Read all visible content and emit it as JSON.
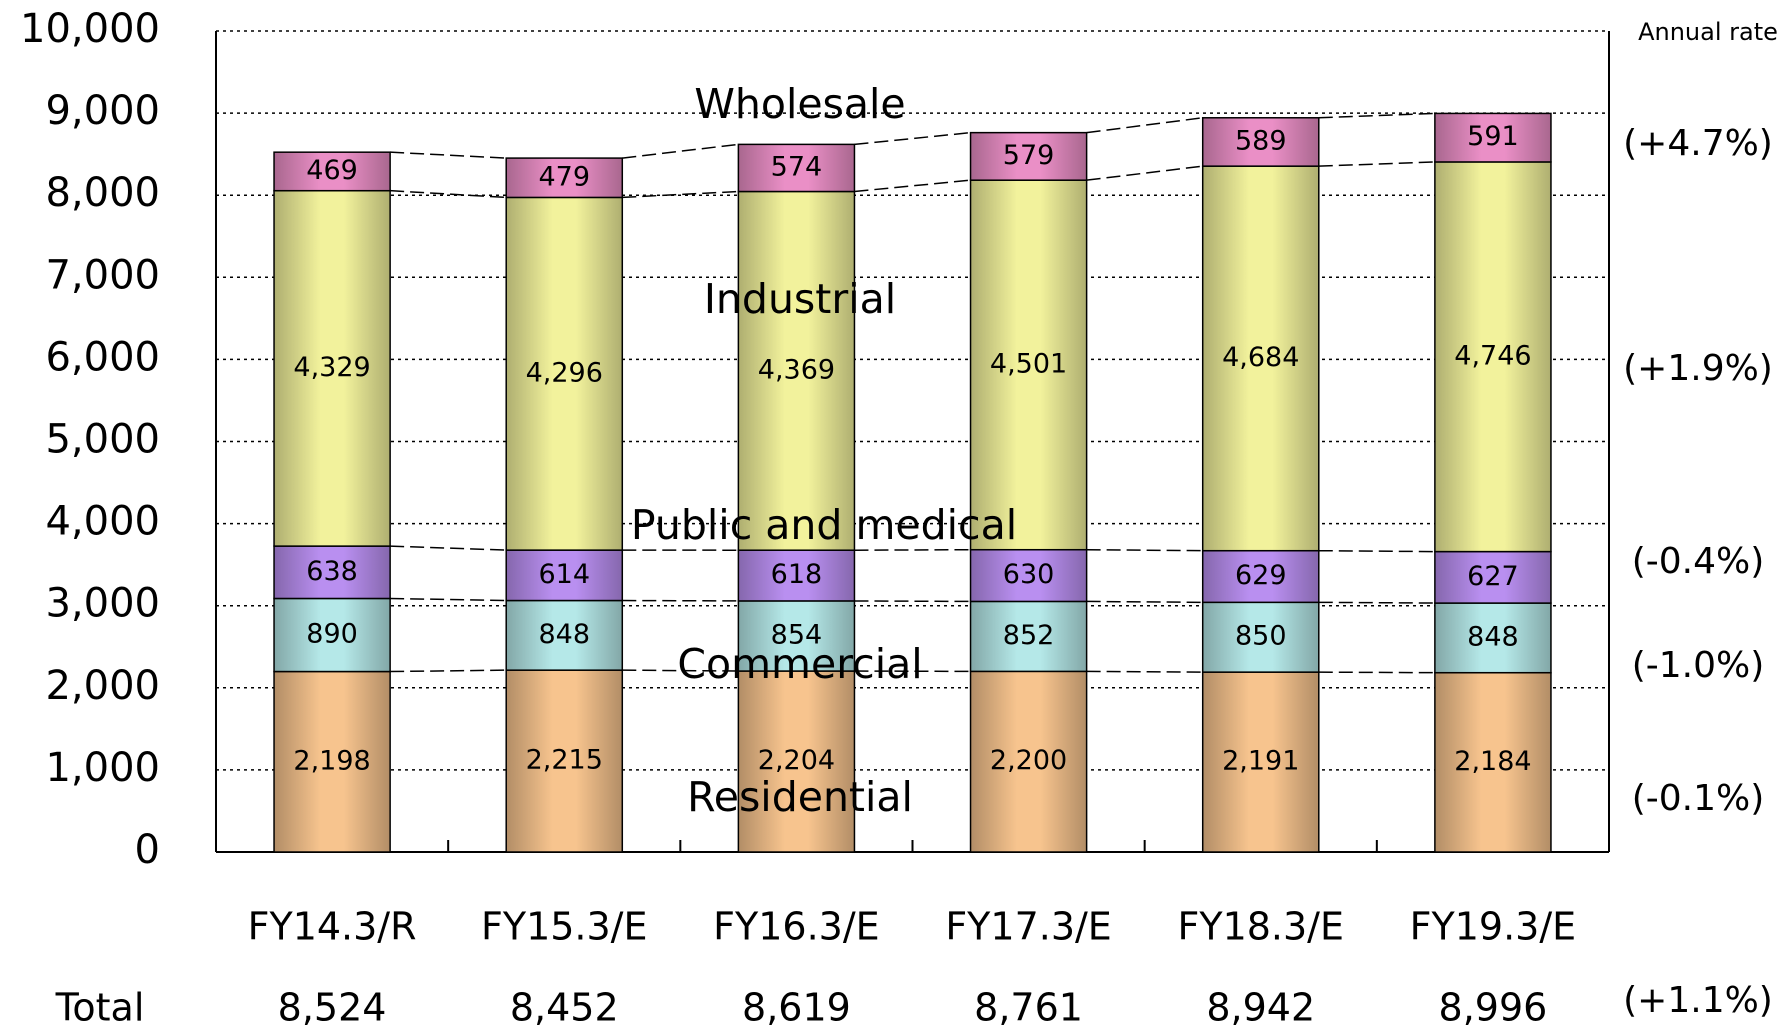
{
  "chart_data": {
    "type": "stacked_bar",
    "categories": [
      "FY14.3/R",
      "FY15.3/E",
      "FY16.3/E",
      "FY17.3/E",
      "FY18.3/E",
      "FY19.3/E"
    ],
    "series": [
      {
        "name": "Residential",
        "color": "#f7c48e",
        "values": [
          2198,
          2215,
          2204,
          2200,
          2191,
          2184
        ],
        "value_labels": [
          "2,198",
          "2,215",
          "2,204",
          "2,200",
          "2,191",
          "2,184"
        ],
        "rate": "(-0.1%)"
      },
      {
        "name": "Commercial",
        "color": "#b5e8e8",
        "values": [
          890,
          848,
          854,
          852,
          850,
          848
        ],
        "rate": "(-1.0%)"
      },
      {
        "name": "Public and medical",
        "color": "#b98ff0",
        "values": [
          638,
          614,
          618,
          630,
          629,
          627
        ],
        "rate": "(-0.4%)"
      },
      {
        "name": "Industrial",
        "color": "#f2f29c",
        "values": [
          4329,
          4296,
          4369,
          4501,
          4684,
          4746
        ],
        "value_labels": [
          "4,329",
          "4,296",
          "4,369",
          "4,501",
          "4,684",
          "4,746"
        ],
        "rate": "(+1.9%)"
      },
      {
        "name": "Wholesale",
        "color": "#ea8fc6",
        "values": [
          469,
          479,
          574,
          579,
          589,
          591
        ],
        "rate": "(+4.7%)"
      }
    ],
    "rate_label": "Annual rate",
    "total_label": "Total",
    "totals": [
      "8,524",
      "8,452",
      "8,619",
      "8,761",
      "8,942",
      "8,996"
    ],
    "total_rate": "(+1.1%)",
    "ylim": [
      0,
      10000
    ],
    "yticks": [
      0,
      {
        "value": 1000,
        "label": "1,000"
      },
      {
        "value": 2000,
        "label": "2,000"
      },
      {
        "value": 3000,
        "label": "3,000"
      },
      {
        "value": 4000,
        "label": "4,000"
      },
      {
        "value": 5000,
        "label": "5,000"
      },
      {
        "value": 6000,
        "label": "6,000"
      },
      {
        "value": 7000,
        "label": "7,000"
      },
      {
        "value": 8000,
        "label": "8,000"
      },
      {
        "value": 9000,
        "label": "9,000"
      },
      {
        "value": 10000,
        "label": "10,000"
      }
    ],
    "grid": true
  }
}
